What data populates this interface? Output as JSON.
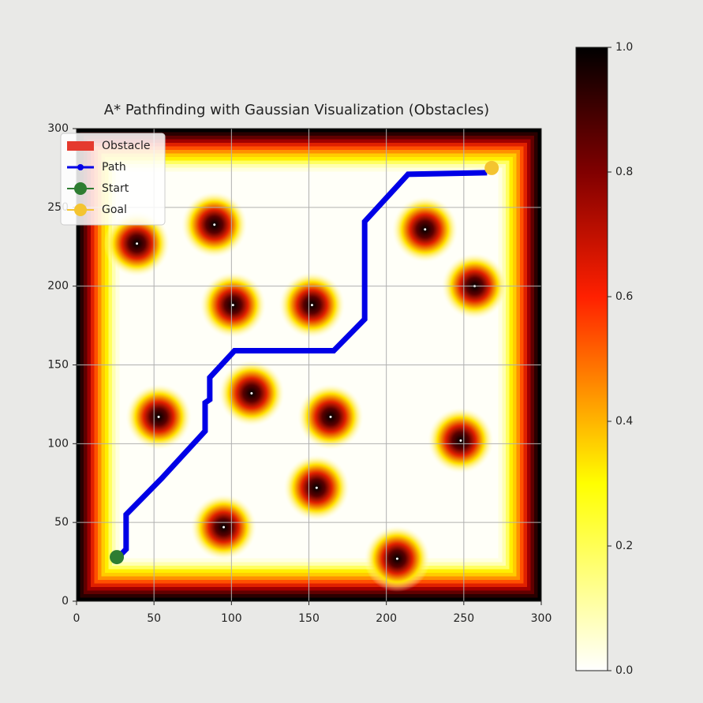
{
  "chart_data": {
    "type": "pathfinding",
    "title": "A* Pathfinding with Gaussian Visualization (Obstacles)",
    "xlim": [
      0,
      300
    ],
    "ylim": [
      0,
      300
    ],
    "xticks": [
      0,
      50,
      100,
      150,
      200,
      250,
      300
    ],
    "yticks": [
      0,
      50,
      100,
      150,
      200,
      250,
      300
    ],
    "grid": true,
    "legend": "upper left",
    "obstacles": {
      "name": "Obstacle",
      "color": "#e53a2e",
      "x": [
        39,
        89,
        225,
        101,
        152,
        257,
        113,
        53,
        164,
        248,
        155,
        95,
        207
      ],
      "y": [
        227,
        239,
        236,
        188,
        188,
        200,
        132,
        117,
        117,
        102,
        72,
        47,
        27
      ]
    },
    "series": [
      {
        "name": "Path",
        "color": "#0000e6",
        "x": [
          27,
          32,
          32,
          55,
          83,
          83,
          86,
          86,
          102,
          166,
          186,
          186,
          214,
          265
        ],
        "values": [
          28,
          33,
          55,
          78,
          108,
          126,
          128,
          142,
          159,
          159,
          179,
          241,
          271,
          272
        ]
      },
      {
        "name": "Start",
        "color": "#2e7d32",
        "x": [
          26
        ],
        "values": [
          28
        ]
      },
      {
        "name": "Goal",
        "color": "#f4c430",
        "x": [
          268
        ],
        "values": [
          275
        ]
      }
    ],
    "colorbar": {
      "lim": [
        0,
        1
      ],
      "ticks": [
        {
          "value": 0,
          "label": "0.0"
        },
        0.2,
        0.4,
        0.6,
        0.8,
        {
          "value": 1,
          "label": "1.0"
        }
      ]
    }
  }
}
